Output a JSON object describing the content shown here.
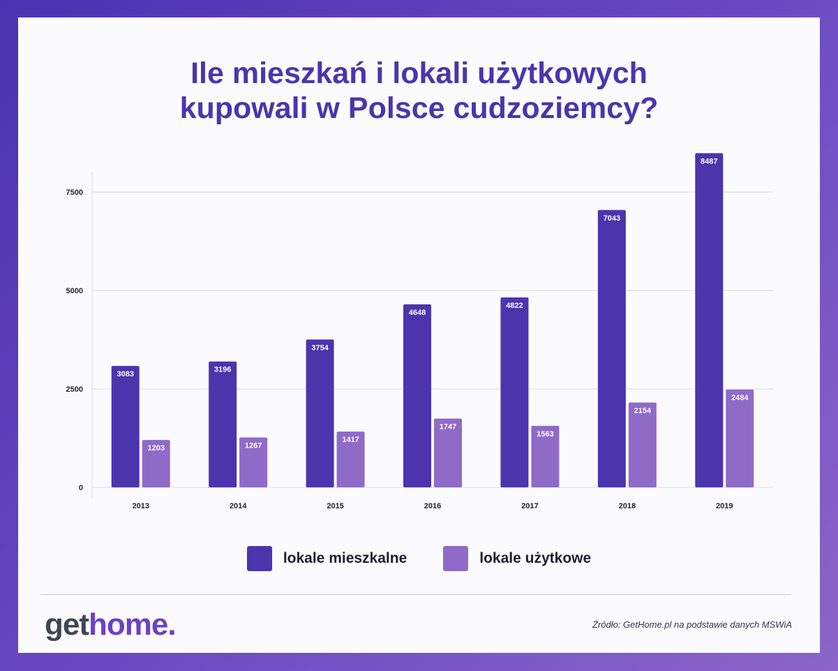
{
  "title": {
    "line1": "Ile mieszkań i lokali użytkowych",
    "line2": "kupowali w Polsce cudzoziemcy?"
  },
  "colors": {
    "primary": "#4b35ad",
    "secondary": "#8f6bc7",
    "grid": "#dcdaea",
    "axis_text": "#222233"
  },
  "chart_data": {
    "type": "bar",
    "title": "Ile mieszkań i lokali użytkowych kupowali w Polsce cudzoziemcy?",
    "categories": [
      "2013",
      "2014",
      "2015",
      "2016",
      "2017",
      "2018",
      "2019"
    ],
    "series": [
      {
        "name": "lokale mieszkalne",
        "color": "#4b35ad",
        "values": [
          3083,
          3196,
          3754,
          4648,
          4822,
          7043,
          8487
        ]
      },
      {
        "name": "lokale użytkowe",
        "color": "#8f6bc7",
        "values": [
          1203,
          1267,
          1417,
          1747,
          1563,
          2154,
          2484
        ]
      }
    ],
    "yticks": [
      0,
      2500,
      5000,
      7500
    ],
    "ylim": [
      0,
      8500
    ],
    "xlabel": "",
    "ylabel": "",
    "grid": true,
    "legend": "bottom-center"
  },
  "legend": {
    "items": [
      {
        "label": "lokale mieszkalne",
        "color": "#4b35ad"
      },
      {
        "label": "lokale użytkowe",
        "color": "#8f6bc7"
      }
    ]
  },
  "footer": {
    "logo_get": "get",
    "logo_home": "home.",
    "source": "Źródło: GetHome.pl na podstawie danych MSWiA"
  }
}
